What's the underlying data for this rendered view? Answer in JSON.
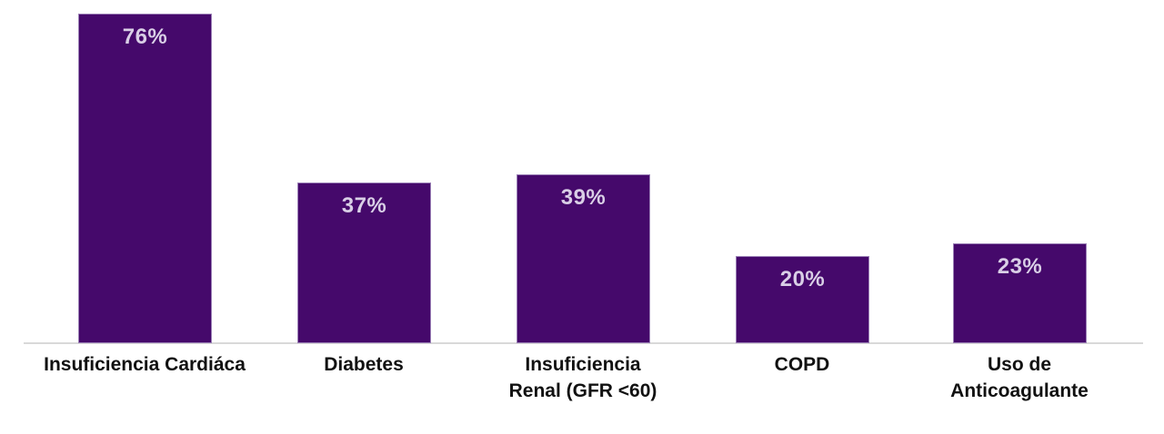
{
  "chart_data": {
    "type": "bar",
    "title": "",
    "xlabel": "",
    "ylabel": "",
    "ylim": [
      0,
      80
    ],
    "grid": false,
    "legend": false,
    "categories": [
      "Insuficiencia Cardiáca",
      "Diabetes",
      "Insuficiencia Renal (GFR <60)",
      "COPD",
      "Uso de Anticoagulante"
    ],
    "category_lines": [
      [
        "Insuficiencia Cardiáca"
      ],
      [
        "Diabetes"
      ],
      [
        "Insuficiencia",
        "Renal (GFR <60)"
      ],
      [
        "COPD"
      ],
      [
        "Uso de",
        "Anticoagulante"
      ]
    ],
    "values": [
      76,
      37,
      39,
      20,
      23
    ],
    "value_labels": [
      "76%",
      "37%",
      "39%",
      "20%",
      "23%"
    ],
    "colors": {
      "bar_fill": "#45096b",
      "bar_border": "#9a7fb5",
      "value_label": "#d9cfe6",
      "category_label": "#111111",
      "baseline": "#d9d9d9",
      "background": "#ffffff"
    }
  }
}
